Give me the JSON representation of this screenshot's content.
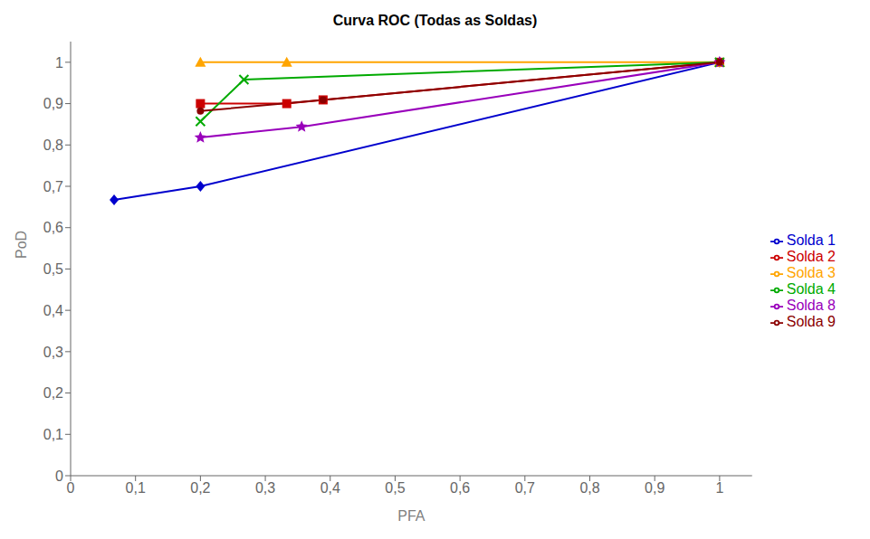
{
  "chart_data": {
    "type": "line",
    "title": "Curva ROC (Todas as Soldas)",
    "x_label": "PFA",
    "y_label": "PoD",
    "series": [
      {
        "name": "Solda 1",
        "color": "#0000CD",
        "marker": "diamond",
        "x": [
          0.067,
          0.2,
          1.0
        ],
        "values": [
          0.667,
          0.7,
          1.0
        ]
      },
      {
        "name": "Solda 2",
        "color": "#CC0000",
        "marker": "square",
        "x": [
          0.2,
          0.333,
          0.389,
          1.0
        ],
        "values": [
          0.9,
          0.9,
          0.909,
          1.0
        ]
      },
      {
        "name": "Solda 3",
        "color": "#FFA500",
        "marker": "triangle",
        "x": [
          0.2,
          0.333,
          1.0
        ],
        "values": [
          1.0,
          1.0,
          1.0
        ]
      },
      {
        "name": "Solda 4",
        "color": "#00AA00",
        "marker": "x",
        "x": [
          0.2,
          0.267,
          1.0
        ],
        "values": [
          0.857,
          0.958,
          1.0
        ]
      },
      {
        "name": "Solda 8",
        "color": "#9900BB",
        "marker": "star",
        "x": [
          0.2,
          0.356,
          1.0
        ],
        "values": [
          0.818,
          0.844,
          1.0
        ]
      },
      {
        "name": "Solda 9",
        "color": "#8B0000",
        "marker": "circle",
        "x": [
          0.2,
          0.389,
          1.0
        ],
        "values": [
          0.882,
          0.909,
          1.0
        ]
      }
    ],
    "xlim": [
      0,
      1.05
    ],
    "ylim": [
      0,
      1.05
    ],
    "xticks": [
      0,
      {
        "value": 0.1,
        "label": "0,1"
      },
      {
        "value": 0.2,
        "label": "0,2"
      },
      {
        "value": 0.3,
        "label": "0,3"
      },
      {
        "value": 0.4,
        "label": "0,4"
      },
      {
        "value": 0.5,
        "label": "0,5"
      },
      {
        "value": 0.6,
        "label": "0,6"
      },
      {
        "value": 0.7,
        "label": "0,7"
      },
      {
        "value": 0.8,
        "label": "0,8"
      },
      {
        "value": 0.9,
        "label": "0,9"
      },
      1
    ],
    "yticks": [
      0,
      {
        "value": 0.1,
        "label": "0,1"
      },
      {
        "value": 0.2,
        "label": "0,2"
      },
      {
        "value": 0.3,
        "label": "0,3"
      },
      {
        "value": 0.4,
        "label": "0,4"
      },
      {
        "value": 0.5,
        "label": "0,5"
      },
      {
        "value": 0.6,
        "label": "0,6"
      },
      {
        "value": 0.7,
        "label": "0,7"
      },
      {
        "value": 0.8,
        "label": "0,8"
      },
      {
        "value": 0.9,
        "label": "0,9"
      },
      1
    ],
    "grid": false,
    "legend": "right"
  }
}
